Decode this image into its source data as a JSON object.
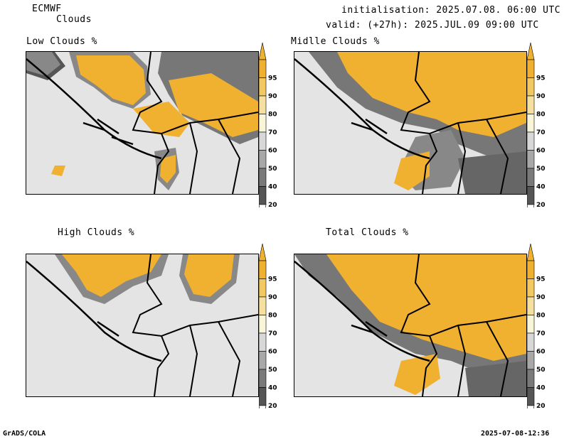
{
  "header": {
    "model": "ECMWF",
    "parameter": "Clouds",
    "init_line": "initialisation: 2025.07.08. 06:00 UTC",
    "valid_line": "valid: (+27h): 2025.JUL.09 09:00 UTC"
  },
  "panels": [
    {
      "title": "Low Clouds %"
    },
    {
      "title": "Midlle Clouds %"
    },
    {
      "title": "High Clouds %"
    },
    {
      "title": "Total Clouds %"
    }
  ],
  "colorbar": {
    "labels": [
      "95",
      "90",
      "80",
      "70",
      "60",
      "50",
      "40",
      "20"
    ],
    "colors": [
      "#f0b030",
      "#f2c860",
      "#f5e0a0",
      "#f8f5d8",
      "#d8d8d8",
      "#a8a8a8",
      "#7a7a7a",
      "#555555"
    ],
    "map_background": "#e4e4e4",
    "land_border_color": "#000000"
  },
  "footer": {
    "software": "GrADS/COLA",
    "timestamp": "2025-07-08-12:36"
  }
}
